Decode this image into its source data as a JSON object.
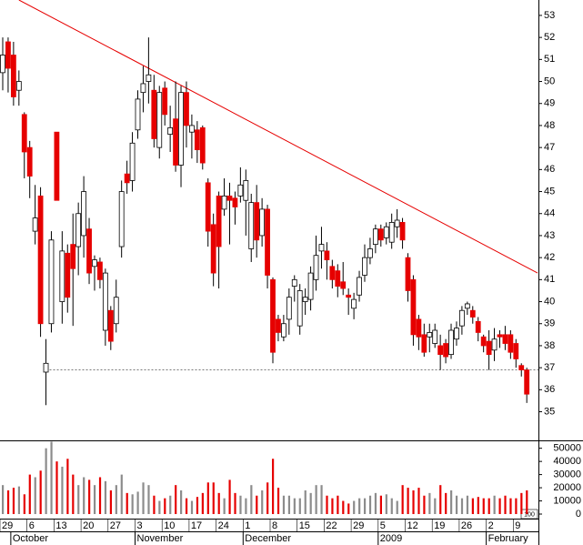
{
  "chart_data": {
    "type": "candlestick",
    "categories": [
      "29",
      null,
      null,
      null,
      null,
      "6",
      null,
      null,
      null,
      null,
      "13",
      null,
      null,
      null,
      null,
      "20",
      null,
      null,
      null,
      null,
      "27",
      null,
      null,
      null,
      null,
      "3",
      null,
      null,
      null,
      null,
      "10",
      null,
      null,
      null,
      null,
      "17",
      null,
      null,
      null,
      null,
      "24",
      null,
      null,
      null,
      null,
      "1",
      null,
      null,
      null,
      null,
      "8",
      null,
      null,
      null,
      null,
      "15",
      null,
      null,
      null,
      null,
      "22",
      null,
      null,
      null,
      null,
      "29",
      null,
      null,
      null,
      null,
      "5",
      null,
      null,
      null,
      null,
      "12",
      null,
      null,
      null,
      null,
      "19",
      null,
      null,
      null,
      null,
      "26",
      null,
      null,
      null,
      null,
      "2",
      null,
      null,
      null,
      null,
      "9",
      null,
      null
    ],
    "months": [
      {
        "index": 2,
        "label": "October"
      },
      {
        "index": 25,
        "label": "November"
      },
      {
        "index": 45,
        "label": "December"
      },
      {
        "index": 70,
        "label": "2009"
      },
      {
        "index": 90,
        "label": "February"
      }
    ],
    "ohlc": [
      [
        50.4,
        52,
        49.6,
        51.2
      ],
      [
        51.8,
        52,
        49.5,
        50.6
      ],
      [
        51.2,
        51.8,
        48.9,
        49.3
      ],
      [
        49.6,
        50.5,
        48.9,
        50.0
      ],
      [
        48.5,
        48.6,
        45.6,
        46.8
      ],
      [
        47.0,
        47.3,
        44.7,
        45.7
      ],
      [
        43.2,
        45.3,
        42.6,
        43.8
      ],
      [
        44.8,
        45.2,
        38.4,
        39.0
      ],
      [
        36.8,
        38.3,
        35.3,
        37.2
      ],
      [
        39.0,
        43.2,
        38.6,
        42.8
      ],
      [
        47.7,
        47.7,
        44.6,
        44.6
      ],
      [
        40.0,
        43.2,
        39.0,
        42.3
      ],
      [
        42.2,
        42.6,
        39.5,
        40.2
      ],
      [
        42.6,
        44.0,
        38.9,
        41.5
      ],
      [
        42.5,
        44.5,
        41.2,
        44.0
      ],
      [
        43.0,
        45.7,
        42.0,
        45.0
      ],
      [
        43.3,
        43.8,
        40.8,
        41.3
      ],
      [
        41.6,
        42.1,
        40.5,
        41.9
      ],
      [
        41.8,
        42.0,
        40.6,
        41.0
      ],
      [
        38.7,
        41.5,
        38.0,
        41.3
      ],
      [
        39.6,
        39.8,
        37.8,
        38.2
      ],
      [
        39.0,
        41.0,
        38.6,
        40.2
      ],
      [
        42.5,
        45.5,
        42.0,
        45.0
      ],
      [
        45.8,
        46.4,
        44.9,
        45.4
      ],
      [
        45.5,
        47.7,
        45.0,
        47.2
      ],
      [
        47.8,
        49.6,
        47.4,
        49.2
      ],
      [
        49.5,
        50.7,
        48.6,
        49.9
      ],
      [
        50.0,
        52.0,
        49.0,
        50.3
      ],
      [
        49.6,
        50.3,
        47.0,
        47.4
      ],
      [
        47.0,
        49.8,
        46.5,
        49.5
      ],
      [
        49.7,
        50.0,
        48.0,
        48.5
      ],
      [
        47.6,
        48.9,
        46.8,
        47.9
      ],
      [
        48.3,
        50.0,
        45.9,
        46.2
      ],
      [
        46.2,
        49.8,
        45.2,
        49.5
      ],
      [
        49.5,
        50.0,
        47.0,
        48.0
      ],
      [
        47.7,
        48.5,
        46.5,
        48.0
      ],
      [
        47.8,
        48.2,
        46.3,
        46.9
      ],
      [
        47.9,
        48.0,
        46.0,
        46.3
      ],
      [
        45.4,
        45.6,
        42.5,
        43.2
      ],
      [
        43.5,
        44.0,
        40.7,
        41.3
      ],
      [
        44.8,
        45.0,
        40.6,
        42.5
      ],
      [
        44.2,
        45.6,
        43.9,
        44.8
      ],
      [
        44.8,
        45.4,
        42.6,
        44.6
      ],
      [
        44.7,
        45.0,
        43.5,
        44.3
      ],
      [
        44.8,
        46.1,
        44.5,
        45.3
      ],
      [
        44.6,
        46.0,
        43.0,
        45.5
      ],
      [
        42.4,
        44.9,
        41.8,
        44.5
      ],
      [
        44.5,
        45.3,
        42.0,
        42.8
      ],
      [
        43.0,
        44.7,
        42.5,
        44.2
      ],
      [
        44.2,
        44.4,
        40.6,
        41.2
      ],
      [
        41.0,
        41.1,
        37.2,
        37.7
      ],
      [
        39.2,
        39.4,
        38.2,
        38.6
      ],
      [
        38.4,
        39.4,
        38.2,
        39.0
      ],
      [
        39.2,
        40.6,
        38.5,
        40.2
      ],
      [
        40.7,
        41.2,
        40.0,
        41.0
      ],
      [
        38.9,
        40.8,
        38.5,
        40.5
      ],
      [
        40.0,
        40.6,
        39.4,
        40.2
      ],
      [
        40.1,
        41.6,
        39.6,
        41.3
      ],
      [
        41.0,
        43.0,
        40.5,
        42.1
      ],
      [
        42.3,
        43.4,
        41.5,
        42.6
      ],
      [
        42.3,
        42.7,
        41.0,
        41.9
      ],
      [
        41.6,
        41.9,
        40.6,
        41.0
      ],
      [
        41.4,
        41.7,
        40.2,
        40.7
      ],
      [
        40.9,
        41.8,
        40.3,
        40.6
      ],
      [
        40.3,
        40.6,
        39.4,
        40.2
      ],
      [
        39.7,
        40.4,
        39.2,
        40.1
      ],
      [
        40.3,
        41.4,
        40.0,
        41.1
      ],
      [
        41.2,
        42.6,
        40.9,
        42.0
      ],
      [
        42.0,
        42.9,
        41.7,
        42.4
      ],
      [
        42.6,
        43.5,
        42.2,
        43.3
      ],
      [
        43.3,
        43.5,
        42.5,
        42.8
      ],
      [
        42.9,
        43.6,
        42.6,
        43.4
      ],
      [
        42.7,
        44.0,
        42.4,
        43.6
      ],
      [
        43.4,
        44.2,
        42.9,
        43.7
      ],
      [
        43.6,
        43.8,
        42.4,
        42.8
      ],
      [
        42.0,
        42.2,
        40.0,
        40.5
      ],
      [
        41.0,
        41.2,
        38.0,
        38.5
      ],
      [
        39.2,
        39.4,
        37.8,
        38.4
      ],
      [
        38.5,
        39.0,
        37.5,
        37.7
      ],
      [
        38.4,
        39.0,
        37.7,
        38.6
      ],
      [
        38.1,
        39.0,
        37.9,
        38.7
      ],
      [
        38.0,
        38.5,
        36.9,
        37.6
      ],
      [
        38.1,
        38.3,
        37.2,
        37.5
      ],
      [
        37.6,
        39.0,
        37.4,
        38.7
      ],
      [
        38.3,
        39.1,
        38.0,
        38.8
      ],
      [
        38.9,
        39.8,
        38.5,
        39.6
      ],
      [
        39.7,
        40.0,
        39.4,
        39.9
      ],
      [
        39.6,
        39.8,
        39.0,
        39.3
      ],
      [
        39.1,
        39.3,
        38.2,
        38.6
      ],
      [
        38.4,
        38.5,
        37.7,
        38.0
      ],
      [
        38.2,
        38.7,
        36.9,
        37.6
      ],
      [
        37.8,
        38.8,
        37.3,
        38.3
      ],
      [
        38.5,
        38.7,
        37.9,
        38.4
      ],
      [
        38.5,
        38.9,
        37.8,
        38.1
      ],
      [
        38.5,
        38.7,
        37.4,
        37.7
      ],
      [
        38.1,
        38.3,
        37.0,
        37.4
      ],
      [
        37.1,
        37.2,
        36.6,
        36.9
      ],
      [
        36.9,
        37.0,
        35.4,
        35.8
      ]
    ],
    "up_color": "#ffffff",
    "down_color": "#e60000",
    "ylim": [
      33.7,
      53.7
    ],
    "yticks": [
      35,
      36,
      37,
      38,
      39,
      40,
      41,
      42,
      43,
      44,
      45,
      46,
      47,
      48,
      49,
      50,
      51,
      52,
      53
    ],
    "trendline": {
      "color": "#e60000",
      "start": {
        "index": 3,
        "value": 53.7
      },
      "end": {
        "index": 99,
        "value": 41.3
      }
    },
    "support_line": {
      "color": "#666666",
      "start_index": 8,
      "value": 36.9
    },
    "volume": {
      "unit_label": "100",
      "up_color": "#8c8c8c",
      "down_color": "#e60000",
      "ylim": [
        0,
        56000
      ],
      "yticks": [
        0,
        10000,
        20000,
        30000,
        40000,
        50000
      ],
      "values": [
        22000,
        18000,
        20000,
        21000,
        15000,
        30000,
        28000,
        33000,
        50000,
        55000,
        40000,
        36000,
        42000,
        30000,
        22000,
        28000,
        26000,
        22000,
        28000,
        25000,
        18000,
        22000,
        30000,
        16000,
        15000,
        17000,
        24000,
        22000,
        14000,
        10000,
        12000,
        14000,
        22000,
        18000,
        12000,
        10000,
        13000,
        16000,
        24000,
        24000,
        16000,
        12000,
        26000,
        16000,
        14000,
        12000,
        22000,
        14000,
        18000,
        24000,
        42000,
        20000,
        14000,
        14000,
        12000,
        12000,
        18000,
        16000,
        22000,
        22000,
        14000,
        12000,
        14000,
        10000,
        8000,
        10000,
        12000,
        12000,
        14000,
        16000,
        14000,
        15000,
        12000,
        10000,
        22000,
        20000,
        18000,
        20000,
        14000,
        16000,
        12000,
        22000,
        16000,
        18000,
        14000,
        12000,
        14000,
        12000,
        13000,
        12000,
        12000,
        14000,
        12000,
        14000,
        12000,
        12000,
        16000,
        18000
      ]
    }
  }
}
